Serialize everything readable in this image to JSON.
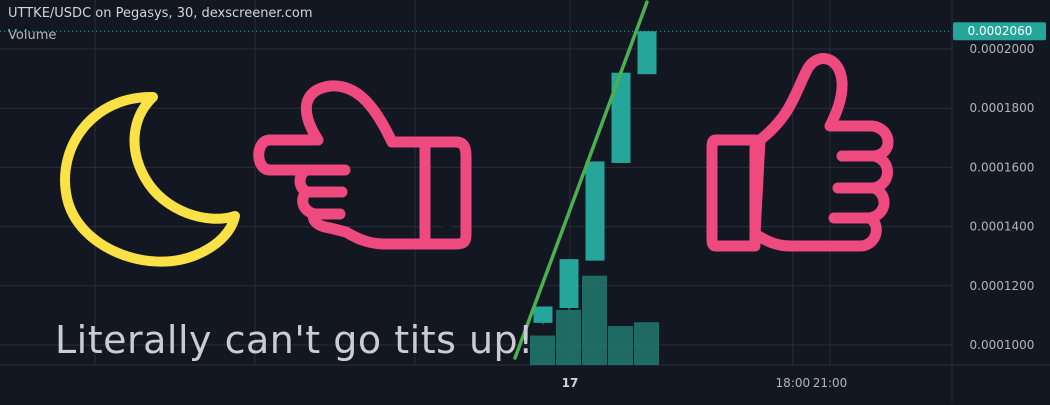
{
  "header": {
    "title": "UTTKE/USDC on Pegasys, 30, dexscreener.com",
    "volume_label": "Volume"
  },
  "overlay": {
    "caption": "Literally can't go tits up!",
    "icons": [
      "crescent-moon-icon",
      "pointing-hand-icon",
      "thumbs-up-icon"
    ],
    "icon_colors": {
      "moon": "#f9e146",
      "hands": "#ee4a80"
    }
  },
  "colors": {
    "background": "#131722",
    "grid": "#2a2e39",
    "up_candle": "#26a69a",
    "volume": "#22796f",
    "trendline": "#4caf50",
    "last_price_tag": "#26a69a"
  },
  "last_price": {
    "label": "0.0002060",
    "value": 0.000206
  },
  "chart_data": {
    "type": "candlestick",
    "title": "UTTKE/USDC on Pegasys, 30, dexscreener.com",
    "y_ticks": [
      {
        "label": "0.0002000",
        "value": 0.0002
      },
      {
        "label": "0.0001800",
        "value": 0.00018
      },
      {
        "label": "0.0001600",
        "value": 0.00016
      },
      {
        "label": "0.0001400",
        "value": 0.00014
      },
      {
        "label": "0.0001200",
        "value": 0.00012
      },
      {
        "label": "0.0001000",
        "value": 0.0001
      }
    ],
    "x_ticks": [
      {
        "label": "17",
        "hour": 0,
        "bold": true
      },
      {
        "label": "18:00",
        "hour": 18,
        "bold": false
      },
      {
        "label": "21:00",
        "hour": 21,
        "bold": false
      }
    ],
    "candles": [
      {
        "open": 0.0001075,
        "high": 0.000113,
        "low": 0.000107,
        "close": 0.000113,
        "volume": 31
      },
      {
        "open": 0.0001125,
        "high": 0.000129,
        "low": 0.000112,
        "close": 0.000129,
        "volume": 58
      },
      {
        "open": 0.0001285,
        "high": 0.000162,
        "low": 0.0001285,
        "close": 0.000162,
        "volume": 94
      },
      {
        "open": 0.0001615,
        "high": 0.000192,
        "low": 0.0001615,
        "close": 0.000192,
        "volume": 41
      },
      {
        "open": 0.0001915,
        "high": 0.000206,
        "low": 0.0001915,
        "close": 0.000206,
        "volume": 45
      }
    ],
    "volume_scale_max": 100
  }
}
